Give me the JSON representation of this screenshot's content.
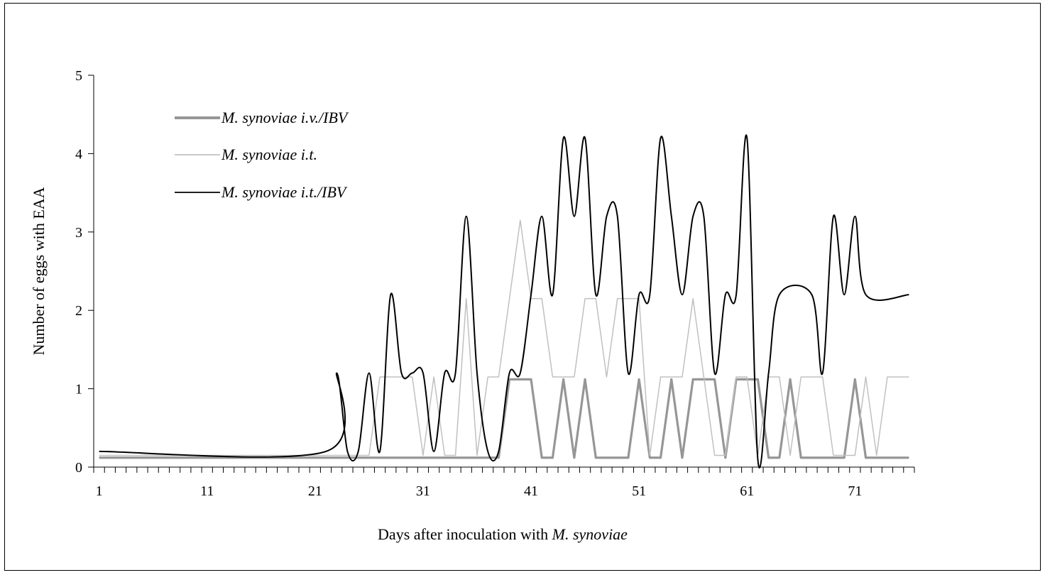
{
  "chart_data": {
    "type": "line",
    "title": "",
    "xlabel_prefix": "Days after  inoculation with ",
    "xlabel_italic": "M. synoviae",
    "ylabel": "Number of eggs  with EAA",
    "xlim": [
      1,
      76
    ],
    "ylim": [
      0,
      5
    ],
    "x_tick_labels": [
      "1",
      "11",
      "21",
      "31",
      "41",
      "51",
      "61",
      "71"
    ],
    "y_tick_labels": [
      "0",
      "1",
      "2",
      "3",
      "4",
      "5"
    ],
    "grid": false,
    "legend_position": "top-left",
    "series": [
      {
        "name": "M. synoviae i.v./IBV",
        "color": "#969696",
        "style": "thick",
        "points": [
          [
            1,
            0.12
          ],
          [
            38,
            0.12
          ],
          [
            39,
            1.12
          ],
          [
            41,
            1.12
          ],
          [
            42,
            0.12
          ],
          [
            43,
            0.12
          ],
          [
            44,
            1.12
          ],
          [
            45,
            0.12
          ],
          [
            46,
            1.12
          ],
          [
            47,
            0.12
          ],
          [
            50,
            0.12
          ],
          [
            51,
            1.12
          ],
          [
            52,
            0.12
          ],
          [
            53,
            0.12
          ],
          [
            54,
            1.12
          ],
          [
            55,
            0.12
          ],
          [
            56,
            1.12
          ],
          [
            58,
            1.12
          ],
          [
            59,
            0.12
          ],
          [
            60,
            1.12
          ],
          [
            62,
            1.12
          ],
          [
            63,
            0.12
          ],
          [
            64,
            0.12
          ],
          [
            65,
            1.12
          ],
          [
            66,
            0.12
          ],
          [
            70,
            0.12
          ],
          [
            71,
            1.12
          ],
          [
            72,
            0.12
          ],
          [
            76,
            0.12
          ]
        ]
      },
      {
        "name": "M. synoviae i.t.",
        "color": "#c0c0c0",
        "style": "thin",
        "points": [
          [
            1,
            0.15
          ],
          [
            26,
            0.15
          ],
          [
            27,
            1.15
          ],
          [
            30,
            1.15
          ],
          [
            31,
            0.15
          ],
          [
            32,
            1.15
          ],
          [
            33,
            0.15
          ],
          [
            34,
            0.15
          ],
          [
            35,
            2.15
          ],
          [
            36,
            0.15
          ],
          [
            37,
            1.15
          ],
          [
            38,
            1.15
          ],
          [
            40,
            3.15
          ],
          [
            41,
            2.15
          ],
          [
            42,
            2.15
          ],
          [
            43,
            1.15
          ],
          [
            45,
            1.15
          ],
          [
            46,
            2.15
          ],
          [
            47,
            2.15
          ],
          [
            48,
            1.15
          ],
          [
            49,
            2.15
          ],
          [
            51,
            2.15
          ],
          [
            52,
            0.15
          ],
          [
            53,
            1.15
          ],
          [
            55,
            1.15
          ],
          [
            56,
            2.15
          ],
          [
            57,
            1.15
          ],
          [
            58,
            0.15
          ],
          [
            59,
            0.15
          ],
          [
            60,
            1.15
          ],
          [
            61,
            1.15
          ],
          [
            62,
            0.15
          ],
          [
            63,
            1.15
          ],
          [
            64,
            1.15
          ],
          [
            65,
            0.15
          ],
          [
            66,
            1.15
          ],
          [
            68,
            1.15
          ],
          [
            69,
            0.15
          ],
          [
            71,
            0.15
          ],
          [
            72,
            1.15
          ],
          [
            73,
            0.15
          ],
          [
            74,
            1.15
          ],
          [
            76,
            1.15
          ]
        ]
      },
      {
        "name": "M. synoviae i.t./IBV",
        "color": "#000000",
        "style": "thin",
        "points": [
          [
            1,
            0.2
          ],
          [
            22,
            0.2
          ],
          [
            23,
            1.2
          ],
          [
            24,
            0.2
          ],
          [
            25,
            0.2
          ],
          [
            26,
            1.2
          ],
          [
            27,
            0.2
          ],
          [
            28,
            2.2
          ],
          [
            29,
            1.2
          ],
          [
            30,
            1.2
          ],
          [
            31,
            1.2
          ],
          [
            32,
            0.2
          ],
          [
            33,
            1.2
          ],
          [
            34,
            1.2
          ],
          [
            35,
            3.2
          ],
          [
            36,
            1.2
          ],
          [
            37,
            0.2
          ],
          [
            38,
            0.2
          ],
          [
            39,
            1.2
          ],
          [
            40,
            1.2
          ],
          [
            41,
            2.2
          ],
          [
            42,
            3.2
          ],
          [
            43,
            2.2
          ],
          [
            44,
            4.2
          ],
          [
            45,
            3.2
          ],
          [
            46,
            4.2
          ],
          [
            47,
            2.2
          ],
          [
            48,
            3.2
          ],
          [
            49,
            3.2
          ],
          [
            50,
            1.2
          ],
          [
            51,
            2.2
          ],
          [
            52,
            2.2
          ],
          [
            53,
            4.2
          ],
          [
            54,
            3.2
          ],
          [
            55,
            2.2
          ],
          [
            56,
            3.2
          ],
          [
            57,
            3.2
          ],
          [
            58,
            1.2
          ],
          [
            59,
            2.2
          ],
          [
            60,
            2.2
          ],
          [
            61,
            4.2
          ],
          [
            62,
            0.1
          ],
          [
            63,
            1.2
          ],
          [
            64,
            2.2
          ],
          [
            67,
            2.2
          ],
          [
            68,
            1.2
          ],
          [
            69,
            3.2
          ],
          [
            70,
            2.2
          ],
          [
            71,
            3.2
          ],
          [
            72,
            2.2
          ],
          [
            76,
            2.2
          ]
        ]
      }
    ]
  }
}
